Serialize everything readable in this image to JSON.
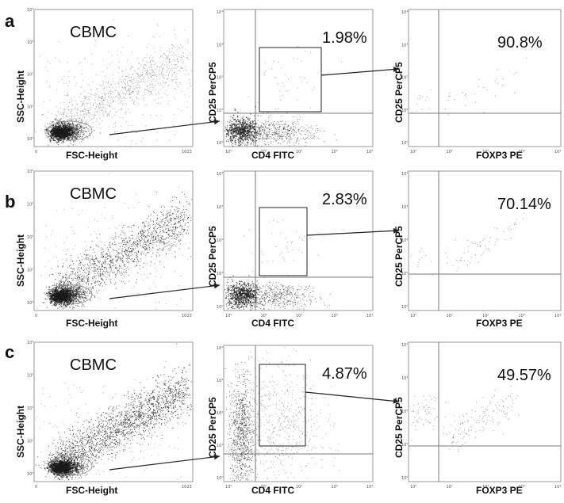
{
  "chart_data": [
    {
      "panel": "a",
      "type": "scatter",
      "charts": [
        {
          "kind": "fsc_ssc",
          "label": "CBMC",
          "xlabel": "FSC-Height",
          "ylabel": "SSC-Height",
          "xticks": [
            "0",
            "1023"
          ],
          "yticks": [
            "10⁰",
            "10¹",
            "10²",
            "10³",
            "10⁴"
          ]
        },
        {
          "kind": "cd4_cd25",
          "xlabel": "CD4 FITC",
          "ylabel": "CD25 PerCP5",
          "gate_percent": "1.98%",
          "xticks": [
            "10⁰",
            "10¹",
            "10²",
            "10³",
            "10⁴"
          ],
          "yticks": [
            "10⁰",
            "10¹",
            "10²",
            "10³",
            "10⁴"
          ]
        },
        {
          "kind": "foxp3_cd25",
          "xlabel": "FOXP3 PE",
          "ylabel": "CD25 PerCP5",
          "quadrant_percent": "90.8%",
          "xticks": [
            "10⁰",
            "10¹",
            "10²",
            "10³",
            "10⁴"
          ],
          "yticks": [
            "10⁰",
            "10¹",
            "10²",
            "10³",
            "10⁴"
          ]
        }
      ]
    },
    {
      "panel": "b",
      "type": "scatter",
      "charts": [
        {
          "kind": "fsc_ssc",
          "label": "CBMC",
          "xlabel": "FSC-Height",
          "ylabel": "SSC-Height",
          "xticks": [
            "0",
            "1023"
          ],
          "yticks": [
            "10⁰",
            "10¹",
            "10²",
            "10³",
            "10⁴"
          ]
        },
        {
          "kind": "cd4_cd25",
          "xlabel": "CD4 FITC",
          "ylabel": "CD25 PerCP5",
          "gate_percent": "2.83%",
          "xticks": [
            "10⁰",
            "10¹",
            "10²",
            "10³",
            "10⁴"
          ],
          "yticks": [
            "10⁰",
            "10¹",
            "10²",
            "10³",
            "10⁴"
          ]
        },
        {
          "kind": "foxp3_cd25",
          "xlabel": "FOXP3 PE",
          "ylabel": "CD25 PerCP5",
          "quadrant_percent": "70.14%",
          "xticks": [
            "10⁰",
            "10¹",
            "10²",
            "10³",
            "10⁴"
          ],
          "yticks": [
            "10⁰",
            "10¹",
            "10²",
            "10³",
            "10⁴"
          ]
        }
      ]
    },
    {
      "panel": "c",
      "type": "scatter",
      "charts": [
        {
          "kind": "fsc_ssc",
          "label": "CBMC",
          "xlabel": "FSC-Height",
          "ylabel": "SSC-Height",
          "xticks": [
            "0",
            "1023"
          ],
          "yticks": [
            "10⁰",
            "10¹",
            "10²",
            "10³",
            "10⁴"
          ]
        },
        {
          "kind": "cd4_cd25",
          "xlabel": "CD4 FITC",
          "ylabel": "CD25 PerCP5",
          "gate_percent": "4.87%",
          "xticks": [
            "10⁰",
            "10¹",
            "10²",
            "10³",
            "10⁴"
          ],
          "yticks": [
            "10⁰",
            "10¹",
            "10²",
            "10³",
            "10⁴"
          ]
        },
        {
          "kind": "foxp3_cd25",
          "xlabel": "FOXP3 PE",
          "ylabel": "CD25 PerCP5",
          "quadrant_percent": "49.57%",
          "xticks": [
            "10⁰",
            "10¹",
            "10²",
            "10³",
            "10⁴"
          ],
          "yticks": [
            "10⁰",
            "10¹",
            "10²",
            "10³",
            "10⁴"
          ]
        }
      ]
    }
  ],
  "colors": {
    "dot": "#1a1a1a",
    "line": "#7a7a7a",
    "frame": "#9a9a9a"
  }
}
